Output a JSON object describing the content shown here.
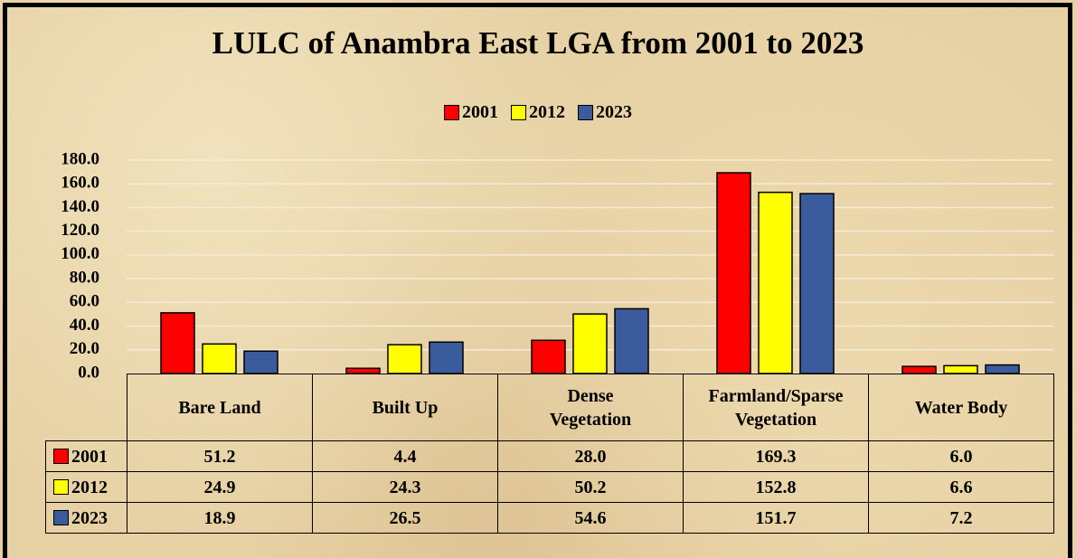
{
  "chart_data": {
    "type": "bar",
    "title": "LULC of Anambra East LGA from 2001 to 2023",
    "categories": [
      "Bare Land",
      "Built Up",
      "Dense Vegetation",
      "Farmland/Sparse Vegetation",
      "Water Body"
    ],
    "series": [
      {
        "name": "2001",
        "color": "#ff0000",
        "values": [
          51.2,
          4.4,
          28,
          169.3,
          6
        ],
        "value_labels": [
          "51.2",
          "4.4",
          "28.0",
          "169.3",
          "6.0"
        ]
      },
      {
        "name": "2012",
        "color": "#ffff00",
        "values": [
          24.9,
          24.3,
          50.2,
          152.8,
          6.6
        ],
        "value_labels": [
          "24.9",
          "24.3",
          "50.2",
          "152.8",
          "6.6"
        ]
      },
      {
        "name": "2023",
        "color": "#3a5b9c",
        "values": [
          18.9,
          26.5,
          54.6,
          151.7,
          7.2
        ],
        "value_labels": [
          "18.9",
          "26.5",
          "54.6",
          "151.7",
          "7.2"
        ]
      }
    ],
    "ylim": [
      0,
      180
    ],
    "yticks": [
      {
        "value": 0,
        "label": "0.0"
      },
      {
        "value": 20,
        "label": "20.0"
      },
      {
        "value": 40,
        "label": "40.0"
      },
      {
        "value": 60,
        "label": "60.0"
      },
      {
        "value": 80,
        "label": "80.0"
      },
      {
        "value": 100,
        "label": "100.0"
      },
      {
        "value": 120,
        "label": "120.0"
      },
      {
        "value": 140,
        "label": "140.0"
      },
      {
        "value": 160,
        "label": "160.0"
      },
      {
        "value": 180,
        "label": "180.0"
      }
    ],
    "grid": true,
    "legend": "top"
  }
}
